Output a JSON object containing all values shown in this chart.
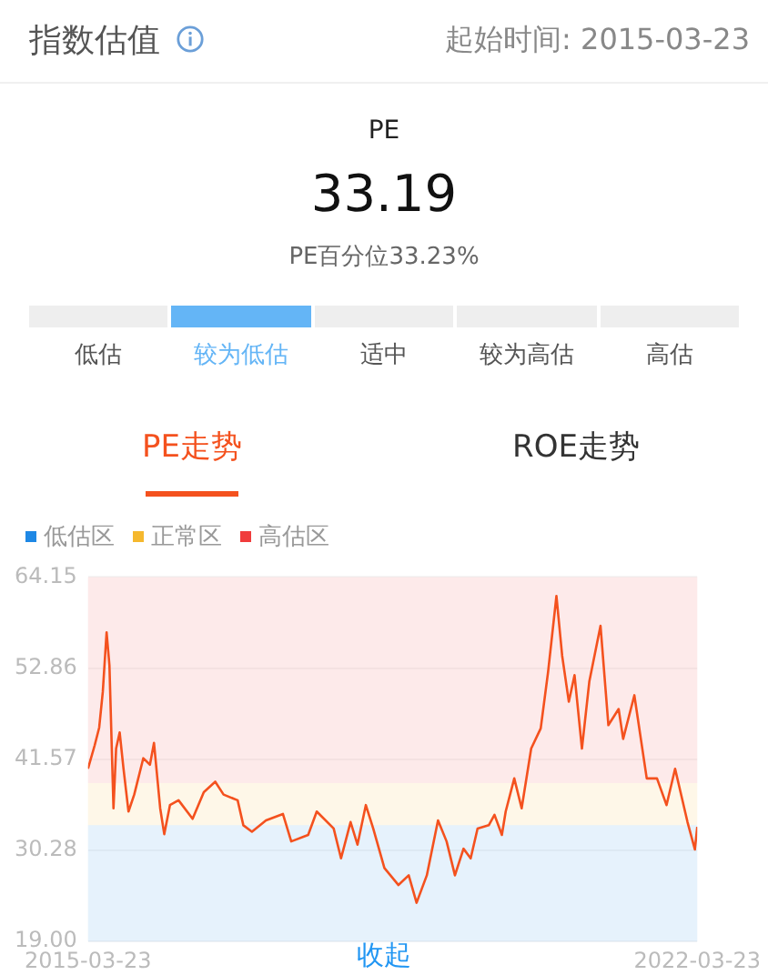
{
  "chart_data": [
    {
      "type": "other",
      "title": "指数估值",
      "subtitle": "起始时间: 2015-03-23",
      "categories": [
        "低估",
        "较为低估",
        "适中",
        "较为高估",
        "高估"
      ],
      "colors": [
        "#eeeeee",
        "#64b5f6",
        "#eeeeee",
        "#eeeeee",
        "#eeeeee"
      ],
      "annotations": [
        "PE",
        "33.19",
        "PE百分位33.23%",
        "PE走势",
        "ROE走势"
      ]
    },
    {
      "type": "line",
      "marker": "none",
      "line_style": "solid",
      "grid": "y",
      "legend": "top left",
      "ylim": [
        19.0,
        64.15
      ],
      "yticks": [
        {
          "value": 19.0,
          "label": "19.00"
        },
        30.28,
        41.57,
        52.86,
        64.15
      ],
      "xlim": [
        "2015-03-23",
        "2022-03-23"
      ],
      "xticks": [
        "2015-03-23",
        "2022-03-23"
      ],
      "bands": [
        {
          "axis": "y",
          "from": 19.0,
          "to": 33.42,
          "label": "低估区",
          "color": "#1e88e5"
        },
        {
          "axis": "y",
          "from": 33.42,
          "to": 38.61,
          "label": "正常区",
          "color": "#f5b82e"
        },
        {
          "axis": "y",
          "from": 38.61,
          "to": 64.15,
          "label": "高估区",
          "color": "#f03c3c"
        }
      ],
      "annotations": [
        "收起"
      ],
      "series": [
        {
          "color": "#f4511e",
          "x": [
            "2015-03-23",
            "2015-04-20",
            "2015-05-09",
            "2015-05-24",
            "2015-06-09",
            "2015-06-21",
            "2015-07-08",
            "2015-07-19",
            "2015-08-03",
            "2015-08-19",
            "2015-09-09",
            "2015-10-03",
            "2015-11-10",
            "2015-12-08",
            "2015-12-25",
            "2016-01-20",
            "2016-02-06",
            "2016-03-01",
            "2016-04-06",
            "2016-06-04",
            "2016-07-21",
            "2016-09-07",
            "2016-10-12",
            "2016-12-10",
            "2017-01-03",
            "2017-02-08",
            "2017-04-08",
            "2017-06-18",
            "2017-07-23",
            "2017-10-02",
            "2017-11-07",
            "2018-01-17",
            "2018-02-17",
            "2018-03-29",
            "2018-04-27",
            "2018-06-01",
            "2018-07-02",
            "2018-08-18",
            "2018-10-16",
            "2018-11-28",
            "2018-12-31",
            "2019-02-12",
            "2019-03-31",
            "2019-05-06",
            "2019-06-10",
            "2019-07-16",
            "2019-08-15",
            "2019-09-13",
            "2019-10-30",
            "2019-11-23",
            "2019-12-24",
            "2020-01-09",
            "2020-02-14",
            "2020-03-16",
            "2020-04-25",
            "2020-06-04",
            "2020-07-05",
            "2020-08-09",
            "2020-09-02",
            "2020-09-30",
            "2020-10-24",
            "2020-11-24",
            "2020-12-25",
            "2021-02-10",
            "2021-03-15",
            "2021-04-27",
            "2021-05-16",
            "2021-07-02",
            "2021-08-23",
            "2021-10-05",
            "2021-11-14",
            "2021-12-20",
            "2022-02-10",
            "2022-03-13",
            "2022-03-23"
          ],
          "values": [
            40.4,
            43.3,
            45.5,
            49.9,
            57.3,
            53.2,
            35.5,
            42.9,
            44.9,
            40.4,
            35.1,
            37.2,
            41.7,
            40.9,
            43.6,
            35.5,
            32.3,
            35.9,
            36.5,
            34.2,
            37.5,
            38.8,
            37.2,
            36.5,
            33.4,
            32.6,
            34.0,
            34.8,
            31.4,
            32.2,
            35.1,
            33.0,
            29.3,
            33.8,
            31.0,
            35.9,
            33.0,
            28.1,
            26.0,
            27.2,
            23.8,
            27.2,
            34.0,
            31.4,
            27.2,
            30.5,
            29.3,
            33.0,
            33.4,
            34.7,
            32.2,
            35.1,
            39.2,
            35.5,
            42.9,
            45.4,
            52.4,
            61.8,
            54.4,
            48.7,
            52.0,
            42.9,
            51.2,
            58.1,
            45.8,
            47.8,
            44.1,
            49.5,
            39.2,
            39.2,
            35.9,
            40.4,
            33.8,
            30.4,
            33.2
          ]
        }
      ]
    }
  ]
}
